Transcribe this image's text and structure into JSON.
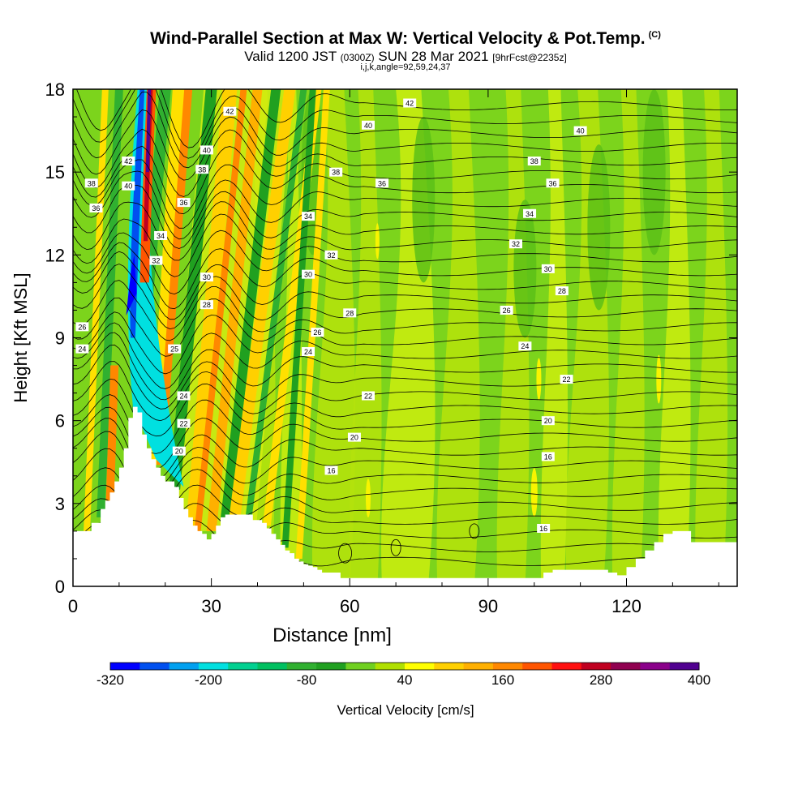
{
  "title": {
    "main": "Wind-Parallel Section at Max W: Vertical Velocity & Pot.Temp.",
    "main_tag": "(C)",
    "valid": "Valid 1200 JST",
    "valid_utc": "(0300Z)",
    "valid_date": "SUN 28 Mar 2021",
    "forecast": "[9hrFcst@2235z]",
    "grid": "i,j,k,angle=92,59,24,37"
  },
  "chart_data": {
    "type": "heatmap",
    "xlabel": "Distance [nm]",
    "ylabel": "Height [Kft MSL]",
    "xlim": [
      0,
      144
    ],
    "ylim": [
      0,
      18
    ],
    "x_ticks": [
      0,
      30,
      60,
      90,
      120
    ],
    "y_ticks": [
      0,
      3,
      6,
      9,
      12,
      15,
      18
    ],
    "colorbar": {
      "label": "Vertical Velocity [cm/s]",
      "tick_labels": [
        "-320",
        "-200",
        "-80",
        "40",
        "160",
        "280",
        "400"
      ],
      "tick_values": [
        -320,
        -200,
        -80,
        40,
        160,
        280,
        400
      ],
      "colors": [
        "#0000ff",
        "#0050f0",
        "#00a0f0",
        "#00e0e0",
        "#00d090",
        "#00c060",
        "#30b030",
        "#20a020",
        "#70d020",
        "#b0e000",
        "#ffff00",
        "#ffd000",
        "#ffb000",
        "#ff8800",
        "#ff5500",
        "#ff1010",
        "#c00020",
        "#900050",
        "#8a008a",
        "#500090"
      ]
    },
    "terrain_profile": {
      "x": [
        0,
        2,
        4,
        6,
        7,
        8,
        9,
        10,
        11,
        12,
        13,
        14,
        15,
        16,
        17,
        18,
        19,
        20,
        21,
        22,
        23,
        24,
        25,
        26,
        27,
        28,
        29,
        30,
        31,
        32,
        33,
        38,
        39,
        41,
        42,
        43,
        44,
        45,
        46,
        47,
        48,
        49,
        50,
        51,
        52,
        53,
        54,
        56,
        58,
        100,
        102,
        104,
        106,
        108,
        112,
        114,
        115,
        116,
        117,
        118,
        119,
        120,
        122,
        124,
        126,
        128,
        130,
        134,
        144
      ],
      "y": [
        2.0,
        2.0,
        2.3,
        2.8,
        3.1,
        3.4,
        3.8,
        4.3,
        5.0,
        6.1,
        6.5,
        6.3,
        5.5,
        5.0,
        4.6,
        4.3,
        4.0,
        3.8,
        3.8,
        3.6,
        3.2,
        2.8,
        2.5,
        2.2,
        2.0,
        1.9,
        1.7,
        1.9,
        2.2,
        2.5,
        2.6,
        2.6,
        2.4,
        2.3,
        2.1,
        1.9,
        1.7,
        1.5,
        1.3,
        1.2,
        1.0,
        0.9,
        0.8,
        0.75,
        0.7,
        0.6,
        0.5,
        0.5,
        0.3,
        0.3,
        0.5,
        0.6,
        0.6,
        0.6,
        0.6,
        0.6,
        0.6,
        0.5,
        0.5,
        0.4,
        0.4,
        0.7,
        1.0,
        1.3,
        1.6,
        1.9,
        2.0,
        1.6,
        1.6
      ]
    },
    "theta_label_positions": [
      {
        "label": "42",
        "x": 73,
        "y": 17.5
      },
      {
        "label": "42",
        "x": 34,
        "y": 17.2
      },
      {
        "label": "42",
        "x": 12,
        "y": 15.4
      },
      {
        "label": "40",
        "x": 64,
        "y": 16.7
      },
      {
        "label": "40",
        "x": 110,
        "y": 16.5
      },
      {
        "label": "40",
        "x": 29,
        "y": 15.8
      },
      {
        "label": "40",
        "x": 12,
        "y": 14.5
      },
      {
        "label": "38",
        "x": 28,
        "y": 15.1
      },
      {
        "label": "38",
        "x": 57,
        "y": 15.0
      },
      {
        "label": "38",
        "x": 100,
        "y": 15.4
      },
      {
        "label": "38",
        "x": 4,
        "y": 14.6
      },
      {
        "label": "36",
        "x": 5,
        "y": 13.7
      },
      {
        "label": "36",
        "x": 24,
        "y": 13.9
      },
      {
        "label": "36",
        "x": 67,
        "y": 14.6
      },
      {
        "label": "36",
        "x": 104,
        "y": 14.6
      },
      {
        "label": "34",
        "x": 51,
        "y": 13.4
      },
      {
        "label": "34",
        "x": 99,
        "y": 13.5
      },
      {
        "label": "34",
        "x": 19,
        "y": 12.7
      },
      {
        "label": "32",
        "x": 18,
        "y": 11.8
      },
      {
        "label": "32",
        "x": 56,
        "y": 12.0
      },
      {
        "label": "32",
        "x": 96,
        "y": 12.4
      },
      {
        "label": "30",
        "x": 29,
        "y": 11.2
      },
      {
        "label": "30",
        "x": 51,
        "y": 11.3
      },
      {
        "label": "30",
        "x": 103,
        "y": 11.5
      },
      {
        "label": "28",
        "x": 29,
        "y": 10.2
      },
      {
        "label": "28",
        "x": 60,
        "y": 9.9
      },
      {
        "label": "28",
        "x": 106,
        "y": 10.7
      },
      {
        "label": "26",
        "x": 94,
        "y": 10.0
      },
      {
        "label": "26",
        "x": 2,
        "y": 9.4
      },
      {
        "label": "26",
        "x": 53,
        "y": 9.2
      },
      {
        "label": "24",
        "x": 2,
        "y": 8.6
      },
      {
        "label": "24",
        "x": 51,
        "y": 8.5
      },
      {
        "label": "24",
        "x": 98,
        "y": 8.7
      },
      {
        "label": "25",
        "x": 22,
        "y": 8.6
      },
      {
        "label": "24",
        "x": 24,
        "y": 6.9
      },
      {
        "label": "22",
        "x": 64,
        "y": 6.9
      },
      {
        "label": "22",
        "x": 107,
        "y": 7.5
      },
      {
        "label": "22",
        "x": 24,
        "y": 5.9
      },
      {
        "label": "20",
        "x": 61,
        "y": 5.4
      },
      {
        "label": "20",
        "x": 103,
        "y": 6.0
      },
      {
        "label": "20",
        "x": 23,
        "y": 4.9
      },
      {
        "label": "16",
        "x": 56,
        "y": 4.2
      },
      {
        "label": "16",
        "x": 103,
        "y": 4.7
      },
      {
        "label": "16",
        "x": 102,
        "y": 2.1
      }
    ]
  }
}
